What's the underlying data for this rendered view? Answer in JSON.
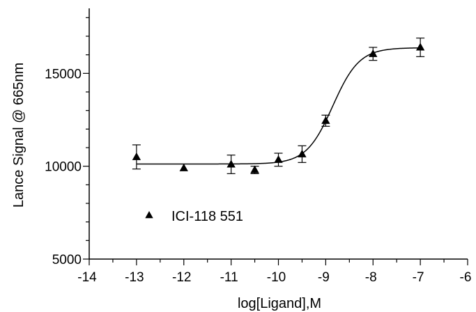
{
  "chart_data": {
    "type": "scatter",
    "title": "",
    "xlabel": "log[Ligand],M",
    "ylabel": "Lance Signal @ 665nm",
    "xlim": [
      -14,
      -6
    ],
    "ylim": [
      5000,
      18500
    ],
    "x_ticks": [
      -14,
      -13,
      -12,
      -11,
      -10,
      -9,
      -8,
      -7,
      -6
    ],
    "y_ticks": [
      5000,
      10000,
      15000
    ],
    "grid": false,
    "legend_position": "bottom-left",
    "series": [
      {
        "name": "ICI-118 551",
        "marker": "triangle",
        "color": "#000000",
        "points": [
          {
            "x": -13,
            "y": 10500,
            "err": 650
          },
          {
            "x": -12,
            "y": 9900,
            "err": 0
          },
          {
            "x": -11,
            "y": 10100,
            "err": 500
          },
          {
            "x": -10.5,
            "y": 9800,
            "err": 200
          },
          {
            "x": -10,
            "y": 10350,
            "err": 350
          },
          {
            "x": -9.5,
            "y": 10650,
            "err": 450
          },
          {
            "x": -9,
            "y": 12450,
            "err": 300
          },
          {
            "x": -8,
            "y": 16050,
            "err": 350
          },
          {
            "x": -7,
            "y": 16400,
            "err": 500
          }
        ]
      }
    ],
    "fit_curve": {
      "model": "sigmoidal dose-response",
      "bottom": 10120,
      "top": 16380,
      "logEC50": -8.85,
      "hill_slope": 1.55,
      "x_range": [
        -13,
        -7
      ]
    }
  }
}
